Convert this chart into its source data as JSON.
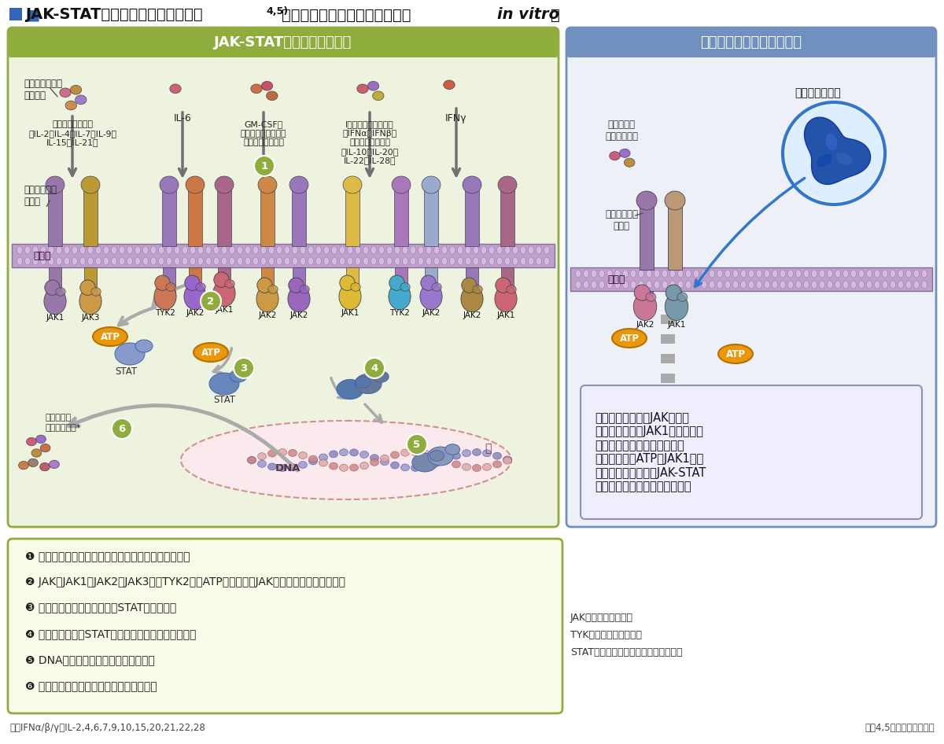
{
  "bg_color": "#ffffff",
  "left_panel_bg": "#eef3e0",
  "left_panel_header_bg": "#8fad3c",
  "left_panel_header_text": "JAK-STATシグナル伝達経路",
  "right_panel_bg": "#eef0f8",
  "right_panel_header_bg": "#7090c0",
  "right_panel_header_text": "フィルゴチニブの作用機序",
  "membrane_color_l": "#c8a8cc",
  "membrane_color_r": "#c8a8cc",
  "bottom_box_border": "#8fad3c",
  "bottom_box_bg": "#f8fce8",
  "right_box_border": "#9090bb",
  "right_box_bg": "#eeeeff",
  "atp_color": "#e8980a",
  "step_circle_color": "#8fad3c",
  "bottom_steps": [
    "❶ サイトカイン又は成長因子と受容体が細胞外で結合",
    "❷ JAK（JAK1、JAK2、JAK3及びTYK2）にATPが結合し、JAKのトランス活性化が促進",
    "❸ 細胞内で受容体に結合したSTATがリン酸化",
    "❹ リン酸化されたSTATが二量体となり、核内に移行",
    "❺ DNAに結合して遅伝子転写を活性化",
    "❻ 炎症誤発性サイトカインの産生等が底進"
  ],
  "footnote_left": "＊：IFNα/β/γ、IL-2,4,6,7,9,10,15,20,21,22,28",
  "footnote_right": "文碅4,5）より改変、作図",
  "abbrev_jak": "JAK：ヤヌスキナーゼ",
  "abbrev_tyk": "TYK：チロシンキナーゼ",
  "abbrev_stat": "STAT：シグナル伝達兼転写活性化因子",
  "right_box_text": "フィルゴチニブがJAKに結合\nしたとき（主にJAK1）、炎症誤\n発性サイトカインが受容体に\n結合しても、ATPのJAK1結合\nが阔害されるため、JAK-STAT\nシグナル伝達が起こりません。",
  "cytokine_labels": [
    "インターロイキン\n（IL-2、IL-4、IL-7、IL-9、\nIL-15、IL-21）",
    "IL-6",
    "GM-CSF、\nエリスロポエチン、\nトロンボポエチン",
    "I型インターフェロン\n（IFNα、IFNβ）\nインターロイキン\n（IL-10、IL-20、\nIL-22、IL-28）",
    "IFNγ"
  ],
  "label_cytokine_top": "サイトカイン、\n成長因子",
  "label_receptor_left": "サイトカイン\n受容体",
  "label_membrane": "細胞膜",
  "label_left_cytokine": "炎症誤発性\nサイトカイン*",
  "label_stat": "STAT",
  "label_dna": "DNA",
  "label_nucleus": "核",
  "label_filgo": "フィルゴチニブ",
  "label_r_cytokine": "炎症誤発性\nサイトカイン",
  "label_r_receptor": "サイトカイン\n受容体",
  "label_r_membrane": "細胞膜"
}
